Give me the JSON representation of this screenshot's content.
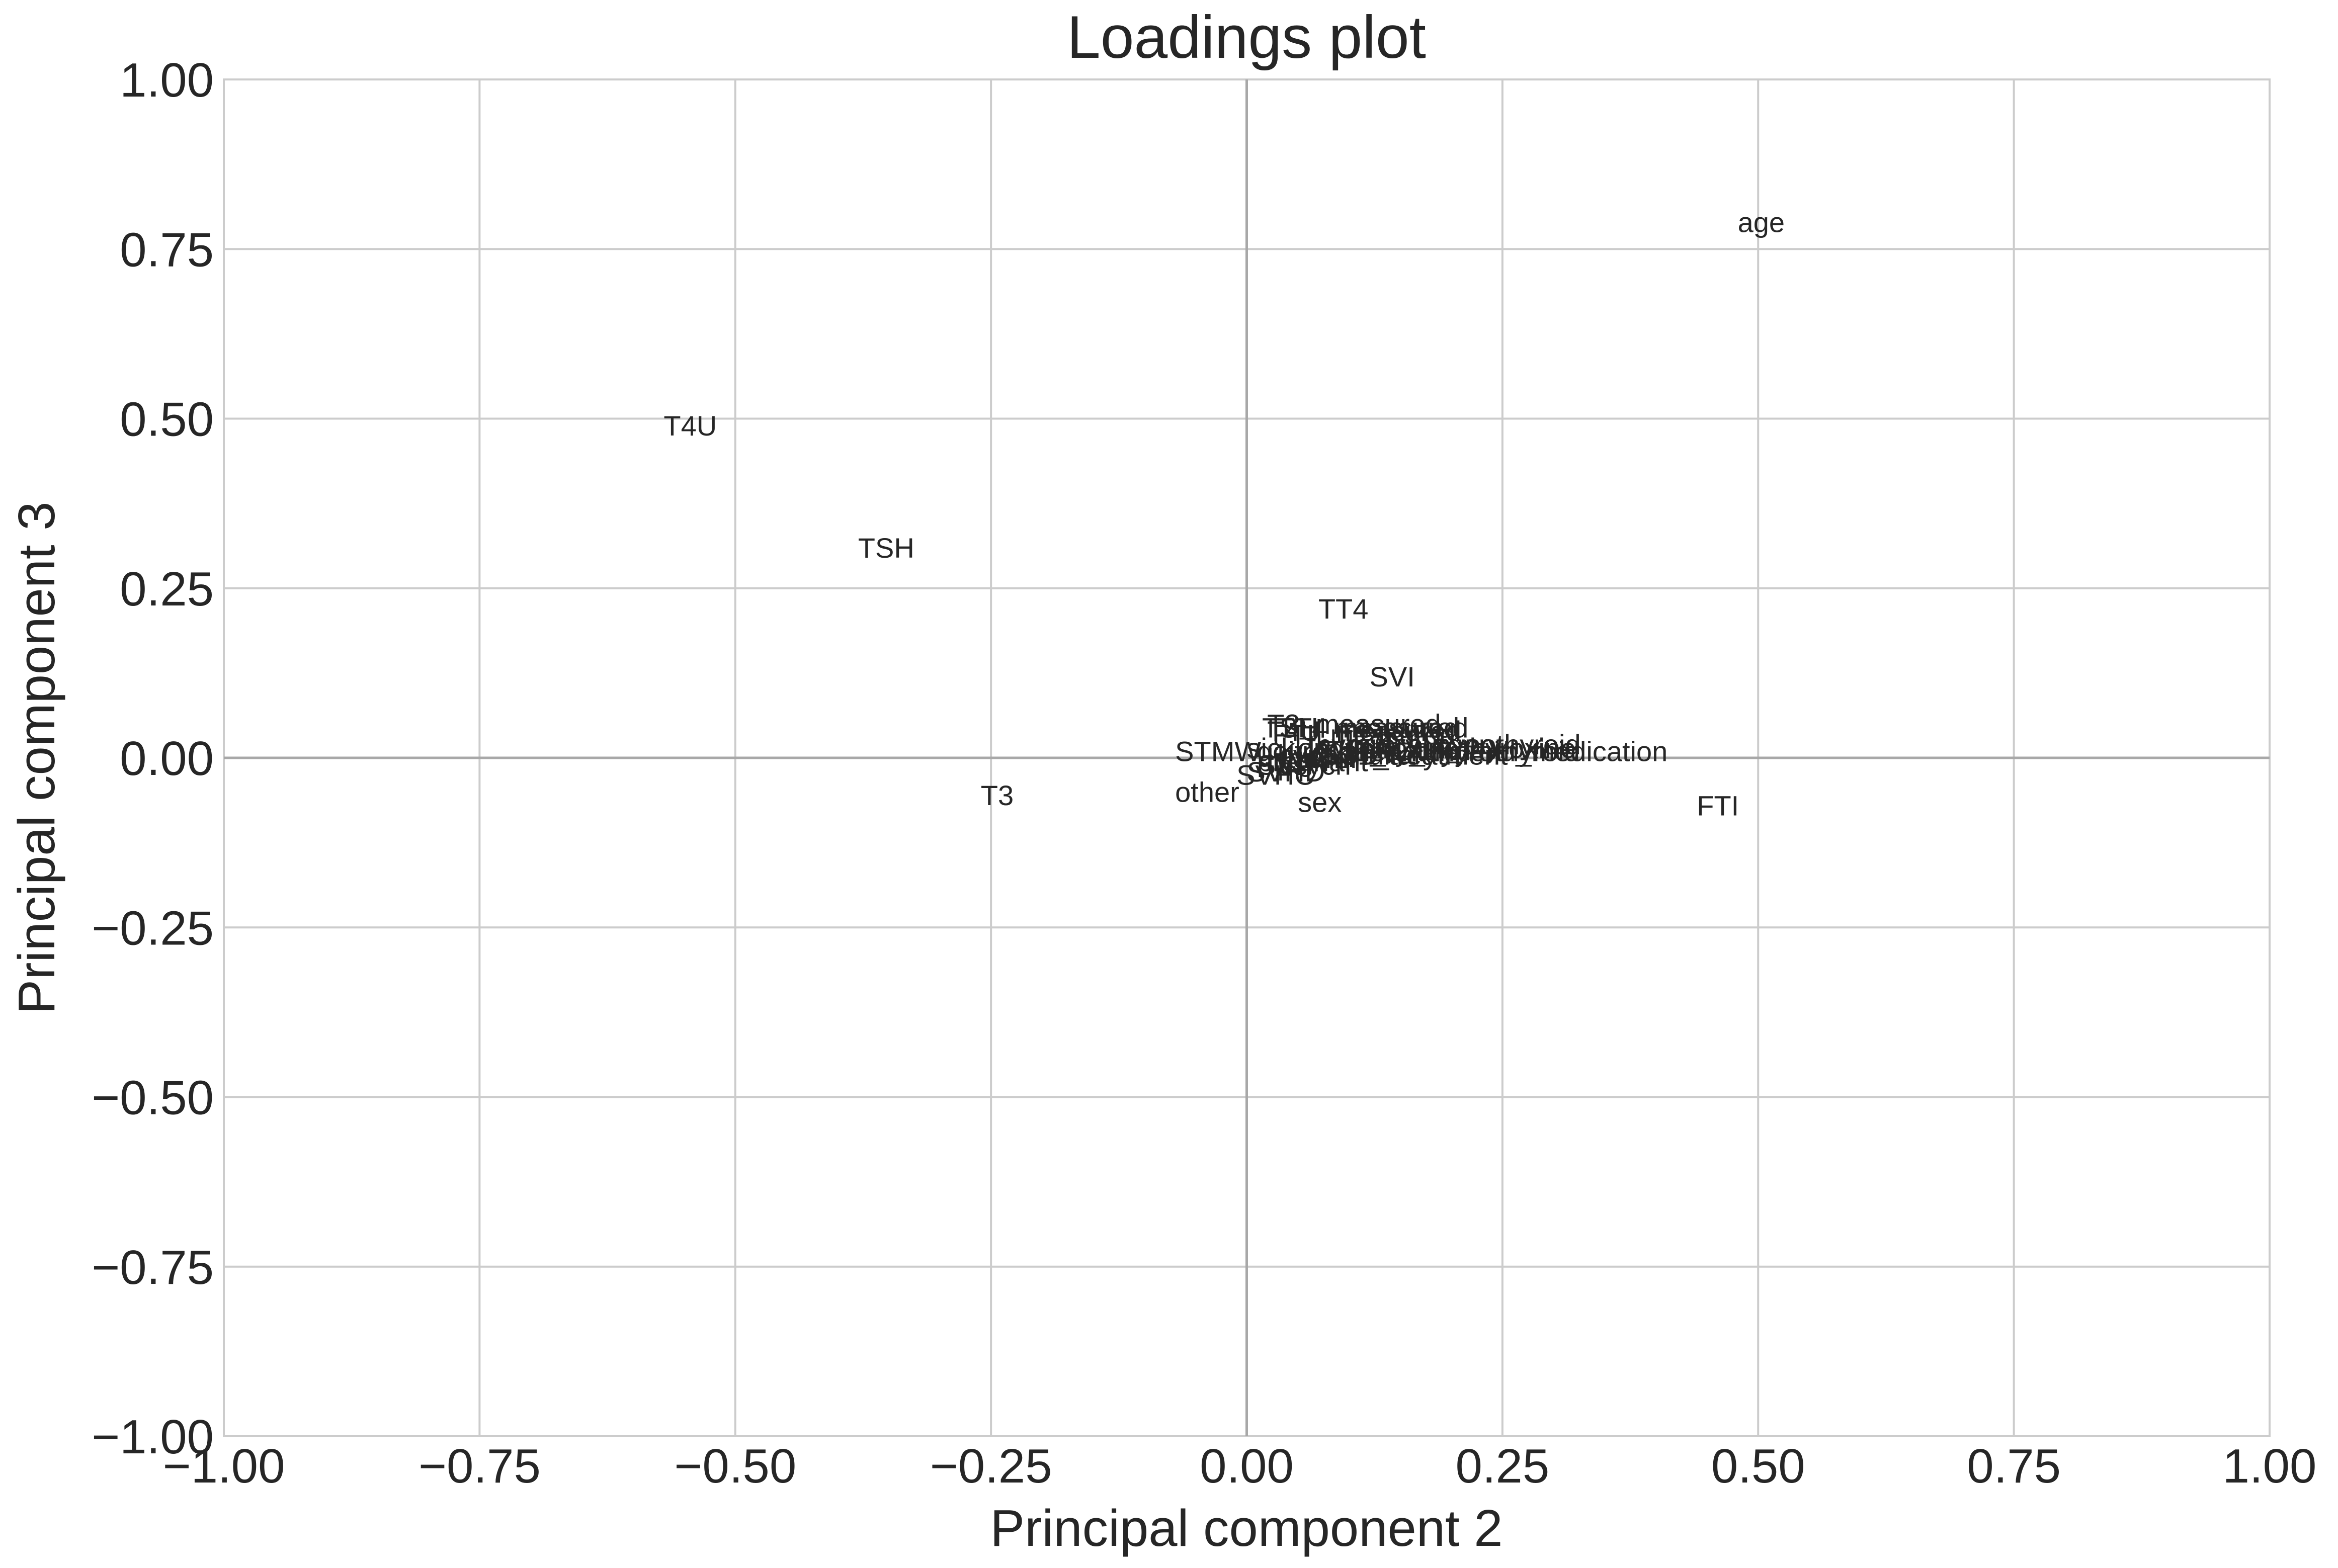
{
  "chart_data": {
    "type": "scatter",
    "title": "Loadings plot",
    "xlabel": "Principal component 2",
    "ylabel": "Principal component 3",
    "xlim": [
      -1.0,
      1.0
    ],
    "ylim": [
      -1.0,
      1.0
    ],
    "xticks": [
      "−1.00",
      "−0.75",
      "−0.50",
      "−0.25",
      "0.00",
      "0.25",
      "0.50",
      "0.75",
      "1.00"
    ],
    "yticks": [
      "1.00",
      "0.75",
      "0.50",
      "0.25",
      "0.00",
      "−0.25",
      "−0.50",
      "−0.75",
      "−1.00"
    ],
    "grid": true,
    "zero_lines": true,
    "points": [
      {
        "label": "age",
        "x": 0.48,
        "y": 0.79
      },
      {
        "label": "T4U",
        "x": -0.57,
        "y": 0.49
      },
      {
        "label": "TSH",
        "x": -0.38,
        "y": 0.31
      },
      {
        "label": "TT4",
        "x": 0.07,
        "y": 0.22
      },
      {
        "label": "SVI",
        "x": 0.12,
        "y": 0.12
      },
      {
        "label": "FTI",
        "x": 0.44,
        "y": -0.07
      },
      {
        "label": "T3",
        "x": -0.26,
        "y": -0.055
      },
      {
        "label": "other",
        "x": -0.07,
        "y": -0.05
      },
      {
        "label": "sex",
        "x": 0.05,
        "y": -0.065
      },
      {
        "label": "SVHC",
        "x": -0.01,
        "y": -0.025
      },
      {
        "label": "on_antithyroid_medication",
        "x": 0.09,
        "y": 0.01
      },
      {
        "label": "T3_measured",
        "x": 0.02,
        "y": 0.05
      },
      {
        "label": "TSH_measured",
        "x": 0.015,
        "y": 0.045
      },
      {
        "label": "T4U_measured",
        "x": 0.02,
        "y": 0.04
      },
      {
        "label": "FTI_measured",
        "x": 0.025,
        "y": 0.035
      },
      {
        "label": "TT4_measured",
        "x": 0.03,
        "y": 0.045
      },
      {
        "label": "on_thyroxine",
        "x": 0.05,
        "y": 0.015
      },
      {
        "label": "hypopituitary",
        "x": 0.03,
        "y": 0.005
      },
      {
        "label": "sick",
        "x": 0.0,
        "y": 0.015
      },
      {
        "label": "pregnant",
        "x": 0.01,
        "y": -0.005
      },
      {
        "label": "thyroid_surgery",
        "x": 0.06,
        "y": 0.02
      },
      {
        "label": "I131_treatment",
        "x": 0.07,
        "y": 0.005
      },
      {
        "label": "query_hypothyroid",
        "x": 0.1,
        "y": 0.02
      },
      {
        "label": "query_hyperthyroid",
        "x": 0.09,
        "y": 0.01
      },
      {
        "label": "lithium",
        "x": 0.02,
        "y": 0.0
      },
      {
        "label": "goitre",
        "x": 0.01,
        "y": 0.01
      },
      {
        "label": "tumor",
        "x": 0.04,
        "y": 0.0
      },
      {
        "label": "psych",
        "x": 0.03,
        "y": -0.01
      },
      {
        "label": "STMW",
        "x": -0.07,
        "y": 0.01
      },
      {
        "label": "SVI",
        "x": 0.01,
        "y": -0.01
      },
      {
        "label": "SVHD",
        "x": 0.0,
        "y": -0.02
      },
      {
        "label": "query_on_thyroxine",
        "x": 0.08,
        "y": 0.015
      }
    ]
  }
}
